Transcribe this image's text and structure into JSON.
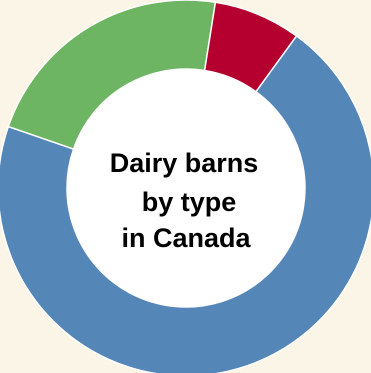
{
  "page": {
    "background": "#faf5e6"
  },
  "chart_data": {
    "type": "pie",
    "donut": true,
    "title_lines": [
      "Dairy barns",
      "by type",
      "in Canada"
    ],
    "slices": [
      {
        "value": 70.3,
        "color": "#5586b8"
      },
      {
        "value": 22.2,
        "color": "#6db563"
      },
      {
        "value": 7.5,
        "color": "#b5002f"
      }
    ],
    "start_angle_deg": 36,
    "direction": "clockwise",
    "legend": "none",
    "data_labels": false
  }
}
